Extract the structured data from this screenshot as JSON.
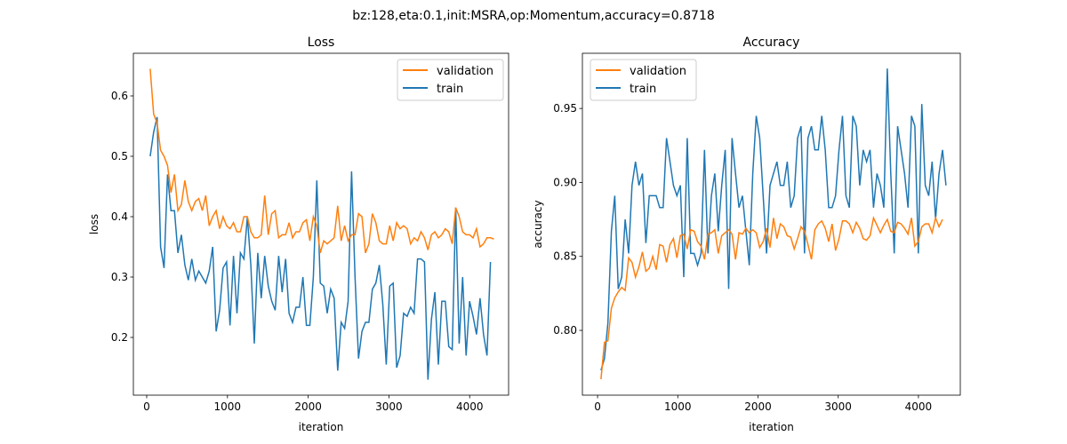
{
  "suptitle": "bz:128,eta:0.1,init:MSRA,op:Momentum,accuracy=0.8718",
  "colors": {
    "validation": "#ff7f0e",
    "train": "#1f77b4"
  },
  "chart_data": [
    {
      "type": "line",
      "title": "Loss",
      "xlabel": "iteration",
      "ylabel": "loss",
      "xlim": [
        -165,
        4482
      ],
      "ylim": [
        0.1044,
        0.6706
      ],
      "x_step": 43,
      "xticks": [
        0,
        1000,
        2000,
        3000,
        4000
      ],
      "yticks": [
        0.2,
        0.3,
        0.4,
        0.5,
        0.6
      ],
      "ytick_labels": [
        "0.2",
        "0.3",
        "0.4",
        "0.5",
        "0.6"
      ],
      "legend": {
        "placement": "top-right",
        "entries": [
          "validation",
          "train"
        ]
      },
      "series": [
        {
          "name": "validation",
          "values": [
            0.645,
            0.57,
            0.555,
            0.51,
            0.5,
            0.485,
            0.44,
            0.47,
            0.41,
            0.42,
            0.46,
            0.425,
            0.41,
            0.425,
            0.43,
            0.41,
            0.435,
            0.385,
            0.4,
            0.41,
            0.38,
            0.4,
            0.385,
            0.38,
            0.39,
            0.375,
            0.375,
            0.4,
            0.4,
            0.375,
            0.365,
            0.365,
            0.37,
            0.435,
            0.37,
            0.405,
            0.41,
            0.365,
            0.37,
            0.37,
            0.39,
            0.365,
            0.375,
            0.375,
            0.39,
            0.395,
            0.36,
            0.4,
            0.385,
            0.34,
            0.36,
            0.355,
            0.36,
            0.365,
            0.418,
            0.36,
            0.385,
            0.36,
            0.37,
            0.37,
            0.405,
            0.4,
            0.34,
            0.355,
            0.405,
            0.39,
            0.36,
            0.355,
            0.355,
            0.385,
            0.36,
            0.39,
            0.38,
            0.385,
            0.38,
            0.355,
            0.365,
            0.36,
            0.375,
            0.365,
            0.345,
            0.37,
            0.375,
            0.365,
            0.37,
            0.38,
            0.375,
            0.355,
            0.415,
            0.4,
            0.375,
            0.37,
            0.37,
            0.365,
            0.38,
            0.35,
            0.355,
            0.365,
            0.365,
            0.363
          ]
        },
        {
          "name": "train",
          "values": [
            0.5,
            0.54,
            0.565,
            0.35,
            0.315,
            0.47,
            0.41,
            0.41,
            0.34,
            0.37,
            0.32,
            0.295,
            0.33,
            0.295,
            0.31,
            0.3,
            0.29,
            0.31,
            0.35,
            0.21,
            0.245,
            0.315,
            0.325,
            0.22,
            0.335,
            0.24,
            0.34,
            0.33,
            0.4,
            0.32,
            0.19,
            0.34,
            0.265,
            0.335,
            0.285,
            0.26,
            0.245,
            0.335,
            0.275,
            0.33,
            0.24,
            0.225,
            0.25,
            0.25,
            0.3,
            0.22,
            0.22,
            0.3,
            0.46,
            0.29,
            0.285,
            0.24,
            0.28,
            0.265,
            0.145,
            0.225,
            0.215,
            0.26,
            0.475,
            0.3,
            0.165,
            0.21,
            0.225,
            0.225,
            0.28,
            0.29,
            0.32,
            0.255,
            0.155,
            0.285,
            0.29,
            0.15,
            0.17,
            0.24,
            0.235,
            0.25,
            0.24,
            0.33,
            0.33,
            0.325,
            0.13,
            0.23,
            0.275,
            0.155,
            0.26,
            0.26,
            0.185,
            0.18,
            0.415,
            0.19,
            0.3,
            0.17,
            0.26,
            0.235,
            0.205,
            0.265,
            0.205,
            0.17,
            0.325
          ]
        }
      ]
    },
    {
      "type": "line",
      "title": "Accuracy",
      "xlabel": "iteration",
      "ylabel": "accuracy",
      "xlim": [
        -189,
        4522
      ],
      "ylim": [
        0.7562,
        0.9873
      ],
      "x_step": 43,
      "xticks": [
        0,
        1000,
        2000,
        3000,
        4000
      ],
      "yticks": [
        0.8,
        0.85,
        0.9,
        0.95
      ],
      "ytick_labels": [
        "0.80",
        "0.85",
        "0.90",
        "0.95"
      ],
      "legend": {
        "placement": "top-left",
        "entries": [
          "validation",
          "train"
        ]
      },
      "series": [
        {
          "name": "validation",
          "values": [
            0.767,
            0.792,
            0.793,
            0.815,
            0.822,
            0.826,
            0.829,
            0.827,
            0.849,
            0.846,
            0.836,
            0.843,
            0.853,
            0.84,
            0.842,
            0.85,
            0.841,
            0.858,
            0.857,
            0.846,
            0.858,
            0.862,
            0.849,
            0.864,
            0.865,
            0.855,
            0.868,
            0.867,
            0.86,
            0.857,
            0.848,
            0.865,
            0.866,
            0.868,
            0.852,
            0.864,
            0.866,
            0.868,
            0.865,
            0.848,
            0.866,
            0.865,
            0.869,
            0.866,
            0.868,
            0.866,
            0.856,
            0.86,
            0.869,
            0.856,
            0.876,
            0.862,
            0.872,
            0.87,
            0.864,
            0.863,
            0.855,
            0.862,
            0.87,
            0.867,
            0.858,
            0.848,
            0.868,
            0.872,
            0.874,
            0.869,
            0.86,
            0.872,
            0.854,
            0.862,
            0.874,
            0.874,
            0.872,
            0.866,
            0.873,
            0.869,
            0.862,
            0.861,
            0.864,
            0.876,
            0.871,
            0.866,
            0.871,
            0.875,
            0.867,
            0.866,
            0.873,
            0.872,
            0.869,
            0.865,
            0.876,
            0.857,
            0.86,
            0.87,
            0.872,
            0.872,
            0.866,
            0.876,
            0.87,
            0.875
          ]
        },
        {
          "name": "train",
          "values": [
            0.773,
            0.781,
            0.805,
            0.867,
            0.891,
            0.828,
            0.836,
            0.875,
            0.852,
            0.898,
            0.914,
            0.898,
            0.906,
            0.859,
            0.891,
            0.891,
            0.891,
            0.883,
            0.883,
            0.93,
            0.914,
            0.898,
            0.891,
            0.898,
            0.836,
            0.93,
            0.852,
            0.852,
            0.844,
            0.852,
            0.922,
            0.852,
            0.891,
            0.906,
            0.867,
            0.898,
            0.922,
            0.828,
            0.93,
            0.906,
            0.883,
            0.891,
            0.867,
            0.844,
            0.906,
            0.945,
            0.93,
            0.891,
            0.852,
            0.898,
            0.906,
            0.914,
            0.898,
            0.898,
            0.914,
            0.883,
            0.891,
            0.93,
            0.938,
            0.852,
            0.93,
            0.938,
            0.922,
            0.922,
            0.945,
            0.922,
            0.883,
            0.883,
            0.891,
            0.922,
            0.945,
            0.891,
            0.883,
            0.945,
            0.938,
            0.898,
            0.922,
            0.914,
            0.922,
            0.883,
            0.906,
            0.898,
            0.883,
            0.977,
            0.906,
            0.852,
            0.938,
            0.922,
            0.906,
            0.883,
            0.945,
            0.938,
            0.852,
            0.953,
            0.898,
            0.891,
            0.914,
            0.875,
            0.906,
            0.922,
            0.898
          ]
        }
      ]
    }
  ]
}
